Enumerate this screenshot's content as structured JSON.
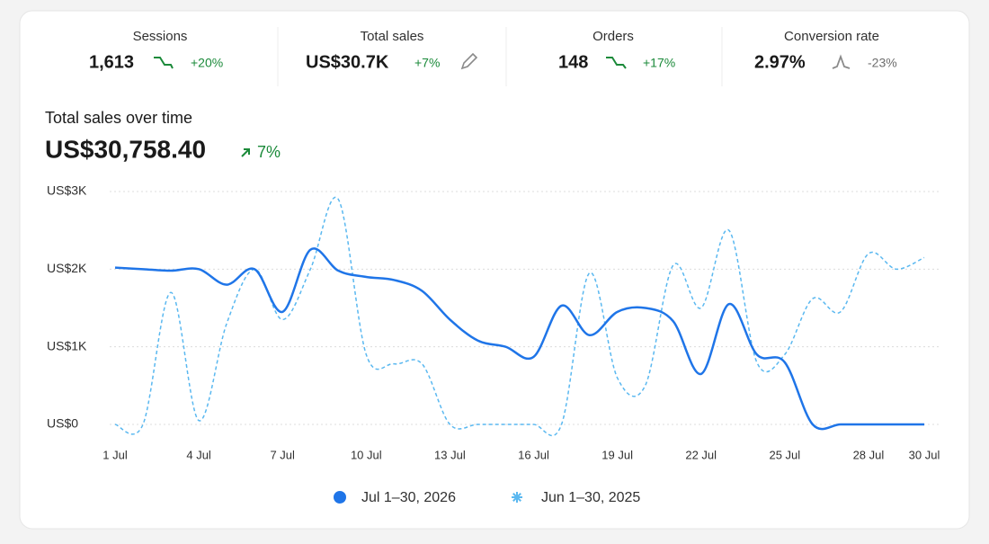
{
  "metrics": [
    {
      "label": "Sessions",
      "value": "1,613",
      "change": "+20%"
    },
    {
      "label": "Total sales",
      "value": "US$30.7K",
      "change": "+7%"
    },
    {
      "label": "Orders",
      "value": "148",
      "change": "+17%"
    },
    {
      "label": "Conversion rate",
      "value": "2.97%",
      "change": "-23%"
    }
  ],
  "chart_data": {
    "type": "line",
    "title": "Total sales over time",
    "total": "US$30,758.40",
    "total_change": "7%",
    "x": [
      1,
      2,
      3,
      4,
      5,
      6,
      7,
      8,
      9,
      10,
      11,
      12,
      13,
      14,
      15,
      16,
      17,
      18,
      19,
      20,
      21,
      22,
      23,
      24,
      25,
      26,
      27,
      28,
      29,
      30
    ],
    "xlim": [
      1,
      30
    ],
    "xticks": [
      {
        "value": 1,
        "label": "1 Jul"
      },
      {
        "value": 4,
        "label": "4 Jul"
      },
      {
        "value": 7,
        "label": "7 Jul"
      },
      {
        "value": 10,
        "label": "10 Jul"
      },
      {
        "value": 13,
        "label": "13 Jul"
      },
      {
        "value": 16,
        "label": "16 Jul"
      },
      {
        "value": 19,
        "label": "19 Jul"
      },
      {
        "value": 22,
        "label": "22 Jul"
      },
      {
        "value": 25,
        "label": "25 Jul"
      },
      {
        "value": 28,
        "label": "28 Jul"
      },
      {
        "value": 30,
        "label": "30 Jul"
      }
    ],
    "ylim": [
      0,
      3000
    ],
    "yticks": [
      {
        "value": 0,
        "label": "US$0"
      },
      {
        "value": 1000,
        "label": "US$1K"
      },
      {
        "value": 2000,
        "label": "US$2K"
      },
      {
        "value": 3000,
        "label": "US$3K"
      }
    ],
    "grid": true,
    "series": [
      {
        "name": "Jul 1–30, 2026",
        "color": "#1f75e8",
        "style": "solid",
        "values": [
          2020,
          2000,
          1980,
          2000,
          1800,
          2000,
          1450,
          2250,
          1980,
          1900,
          1860,
          1720,
          1350,
          1080,
          1000,
          870,
          1530,
          1150,
          1450,
          1500,
          1330,
          650,
          1550,
          900,
          800,
          0,
          0,
          0,
          0,
          0
        ]
      },
      {
        "name": "Jun 1–30, 2025",
        "color": "#5ab8f0",
        "style": "dashed",
        "values": [
          0,
          0,
          1700,
          50,
          1300,
          2000,
          1350,
          2000,
          2900,
          900,
          780,
          780,
          0,
          0,
          0,
          0,
          0,
          1950,
          600,
          500,
          2050,
          1500,
          2500,
          800,
          900,
          1620,
          1450,
          2200,
          2000,
          2150
        ]
      }
    ]
  }
}
